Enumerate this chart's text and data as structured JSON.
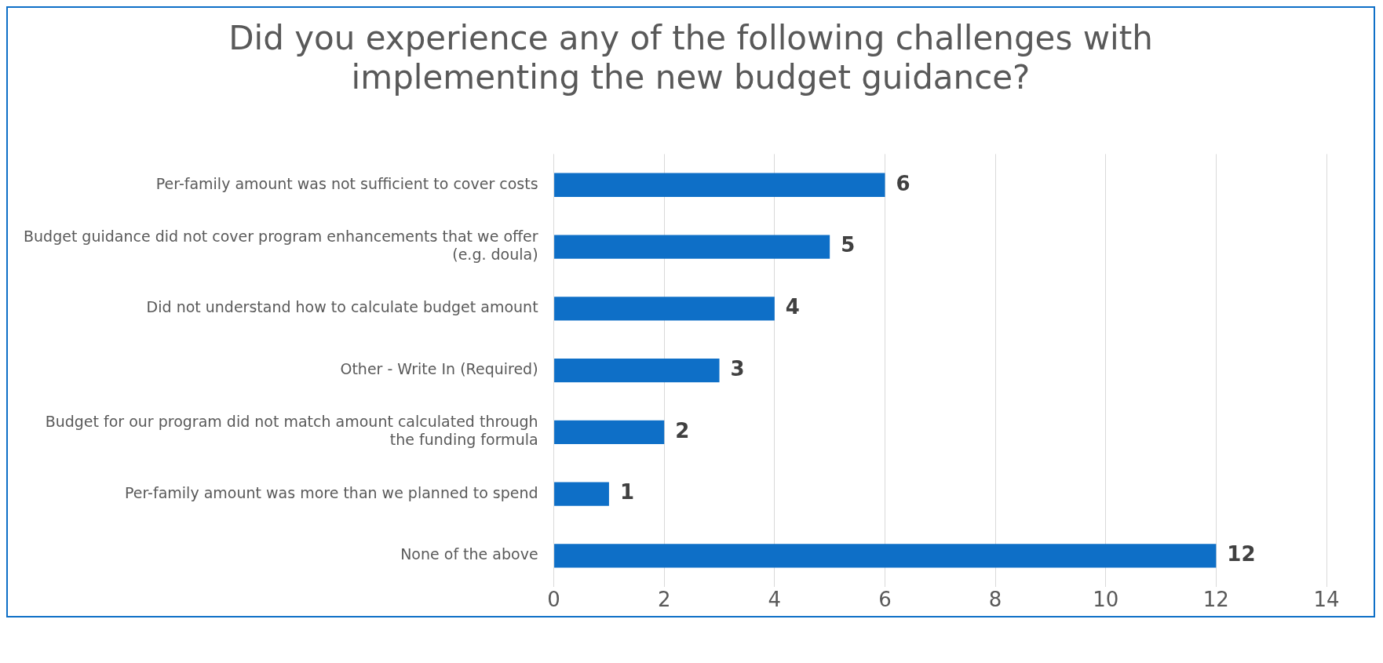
{
  "chart_data": {
    "type": "bar",
    "orientation": "horizontal",
    "title": "Did you experience any of the following challenges with implementing the new budget guidance?",
    "categories": [
      "Per-family amount was not sufficient to cover costs",
      "Budget guidance did not cover program enhancements that we offer (e.g. doula)",
      "Did not understand how to calculate budget amount",
      "Other - Write In (Required)",
      "Budget for our program did not match amount calculated through the funding formula",
      "Per-family amount was more than we planned to spend",
      "None of the above"
    ],
    "values": [
      6,
      5,
      4,
      3,
      2,
      1,
      12
    ],
    "color": "#0e6fc7",
    "xlim": [
      0,
      14
    ],
    "xticks": [
      0,
      2,
      4,
      6,
      8,
      10,
      12,
      14
    ],
    "grid": "x",
    "legend": false,
    "data_labels": true
  }
}
